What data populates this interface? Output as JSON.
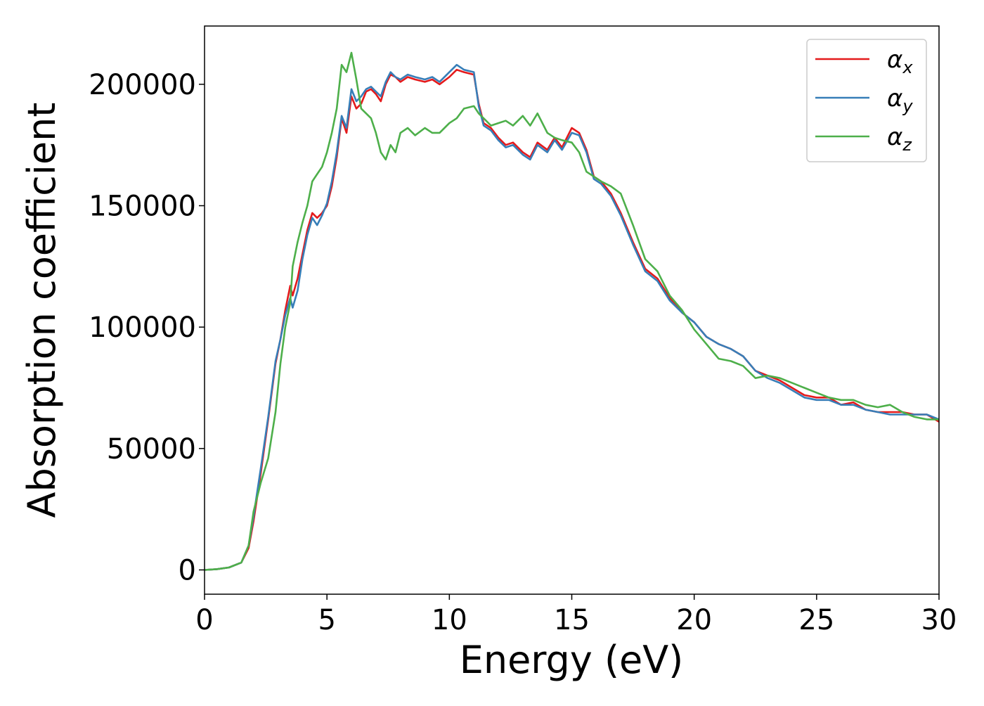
{
  "chart_data": {
    "type": "line",
    "title": "",
    "xlabel": "Energy (eV)",
    "ylabel": "Absorption coefficient",
    "xlim": [
      0,
      30
    ],
    "ylim": [
      -10000,
      224000
    ],
    "xticks": [
      0,
      5,
      10,
      15,
      20,
      25,
      30
    ],
    "xtick_labels": [
      "0",
      "5",
      "10",
      "15",
      "20",
      "25",
      "30"
    ],
    "yticks": [
      0,
      50000,
      100000,
      150000,
      200000
    ],
    "ytick_labels": [
      "0",
      "50000",
      "100000",
      "150000",
      "200000"
    ],
    "grid": false,
    "legend_position": "top-right",
    "series": [
      {
        "name": "αx",
        "legend_symbol": "α",
        "legend_subscript": "x",
        "color": "#e41a1c",
        "x": [
          0,
          0.5,
          1,
          1.5,
          1.8,
          2,
          2.3,
          2.6,
          2.9,
          3.1,
          3.3,
          3.5,
          3.6,
          3.8,
          4,
          4.2,
          4.4,
          4.6,
          4.8,
          5,
          5.2,
          5.4,
          5.6,
          5.8,
          6,
          6.2,
          6.4,
          6.6,
          6.8,
          7,
          7.2,
          7.4,
          7.6,
          7.8,
          8,
          8.3,
          8.6,
          9,
          9.3,
          9.6,
          10,
          10.3,
          10.6,
          11,
          11.2,
          11.4,
          11.7,
          12,
          12.3,
          12.6,
          13,
          13.3,
          13.6,
          14,
          14.3,
          14.6,
          15,
          15.3,
          15.6,
          15.9,
          16.2,
          16.6,
          17,
          17.5,
          18,
          18.5,
          19,
          19.5,
          20,
          20.5,
          21,
          21.5,
          22,
          22.5,
          23,
          23.5,
          24,
          24.5,
          25,
          25.5,
          26,
          26.5,
          27,
          27.5,
          28,
          28.5,
          29,
          29.5,
          30
        ],
        "values": [
          0,
          300,
          1000,
          3000,
          9000,
          20000,
          40000,
          62000,
          85000,
          95000,
          107000,
          117000,
          113000,
          120000,
          130000,
          140000,
          147000,
          145000,
          147000,
          150000,
          158000,
          170000,
          186000,
          180000,
          195000,
          190000,
          192000,
          197000,
          198000,
          196000,
          193000,
          200000,
          204000,
          203000,
          201000,
          203000,
          202000,
          201000,
          202000,
          200000,
          203000,
          206000,
          205000,
          204000,
          192000,
          184000,
          182000,
          178000,
          175000,
          176000,
          172000,
          170000,
          176000,
          173000,
          178000,
          174000,
          182000,
          180000,
          173000,
          162000,
          160000,
          155000,
          147000,
          135000,
          124000,
          120000,
          112000,
          106000,
          102000,
          96000,
          93000,
          91000,
          88000,
          82000,
          80000,
          78000,
          75000,
          72000,
          71000,
          71000,
          68000,
          69000,
          66000,
          65000,
          65000,
          65000,
          64000,
          64000,
          61000
        ]
      },
      {
        "name": "αy",
        "legend_symbol": "α",
        "legend_subscript": "y",
        "color": "#377eb8",
        "x": [
          0,
          0.5,
          1,
          1.5,
          1.8,
          2,
          2.3,
          2.6,
          2.9,
          3.1,
          3.3,
          3.5,
          3.6,
          3.8,
          4,
          4.2,
          4.4,
          4.6,
          4.8,
          5,
          5.2,
          5.4,
          5.6,
          5.8,
          6,
          6.2,
          6.4,
          6.6,
          6.8,
          7,
          7.2,
          7.4,
          7.6,
          7.8,
          8,
          8.3,
          8.6,
          9,
          9.3,
          9.6,
          10,
          10.3,
          10.6,
          11,
          11.2,
          11.4,
          11.7,
          12,
          12.3,
          12.6,
          13,
          13.3,
          13.6,
          14,
          14.3,
          14.6,
          15,
          15.3,
          15.6,
          15.9,
          16.2,
          16.6,
          17,
          17.5,
          18,
          18.5,
          19,
          19.5,
          20,
          20.5,
          21,
          21.5,
          22,
          22.5,
          23,
          23.5,
          24,
          24.5,
          25,
          25.5,
          26,
          26.5,
          27,
          27.5,
          28,
          28.5,
          29,
          29.5,
          30
        ],
        "values": [
          0,
          300,
          1000,
          3000,
          10000,
          22000,
          42000,
          63000,
          86000,
          95000,
          105000,
          112000,
          108000,
          115000,
          128000,
          138000,
          145000,
          142000,
          146000,
          151000,
          160000,
          172000,
          187000,
          182000,
          198000,
          193000,
          195000,
          198000,
          199000,
          197000,
          195000,
          201000,
          205000,
          203000,
          202000,
          204000,
          203000,
          202000,
          203000,
          201000,
          205000,
          208000,
          206000,
          205000,
          191000,
          183000,
          181000,
          177000,
          174000,
          175000,
          171000,
          169000,
          175000,
          172000,
          177000,
          173000,
          180000,
          179000,
          172000,
          161000,
          159000,
          154000,
          146000,
          134000,
          123000,
          119000,
          111000,
          106000,
          102000,
          96000,
          93000,
          91000,
          88000,
          82000,
          79000,
          77000,
          74000,
          71000,
          70000,
          70000,
          68000,
          68000,
          66000,
          65000,
          64000,
          64000,
          64000,
          64000,
          62000
        ]
      },
      {
        "name": "αz",
        "legend_symbol": "α",
        "legend_subscript": "z",
        "color": "#4daf4a",
        "x": [
          0,
          0.5,
          1,
          1.5,
          1.8,
          2,
          2.3,
          2.6,
          2.9,
          3.1,
          3.3,
          3.5,
          3.6,
          3.8,
          4,
          4.2,
          4.4,
          4.6,
          4.8,
          5,
          5.2,
          5.4,
          5.6,
          5.8,
          6,
          6.2,
          6.4,
          6.6,
          6.8,
          7,
          7.2,
          7.4,
          7.6,
          7.8,
          8,
          8.3,
          8.6,
          9,
          9.3,
          9.6,
          10,
          10.3,
          10.6,
          11,
          11.2,
          11.4,
          11.7,
          12,
          12.3,
          12.6,
          13,
          13.3,
          13.6,
          14,
          14.3,
          14.6,
          15,
          15.3,
          15.6,
          15.9,
          16.2,
          16.6,
          17,
          17.5,
          18,
          18.5,
          19,
          19.5,
          20,
          20.5,
          21,
          21.5,
          22,
          22.5,
          23,
          23.5,
          24,
          24.5,
          25,
          25.5,
          26,
          26.5,
          27,
          27.5,
          28,
          28.5,
          29,
          29.5,
          30
        ],
        "values": [
          0,
          300,
          1000,
          3000,
          10000,
          24000,
          36000,
          46000,
          65000,
          85000,
          100000,
          110000,
          125000,
          135000,
          143000,
          150000,
          160000,
          163000,
          166000,
          172000,
          180000,
          190000,
          208000,
          205000,
          213000,
          202000,
          190000,
          188000,
          186000,
          180000,
          172000,
          169000,
          175000,
          172000,
          180000,
          182000,
          179000,
          182000,
          180000,
          180000,
          184000,
          186000,
          190000,
          191000,
          188000,
          186000,
          183000,
          184000,
          185000,
          183000,
          187000,
          183000,
          188000,
          180000,
          178000,
          177000,
          176000,
          172000,
          164000,
          162000,
          160000,
          158000,
          155000,
          142000,
          128000,
          123000,
          113000,
          107000,
          99000,
          93000,
          87000,
          86000,
          84000,
          79000,
          80000,
          79000,
          77000,
          75000,
          73000,
          71000,
          70000,
          70000,
          68000,
          67000,
          68000,
          65000,
          63000,
          62000,
          62000
        ]
      }
    ]
  }
}
